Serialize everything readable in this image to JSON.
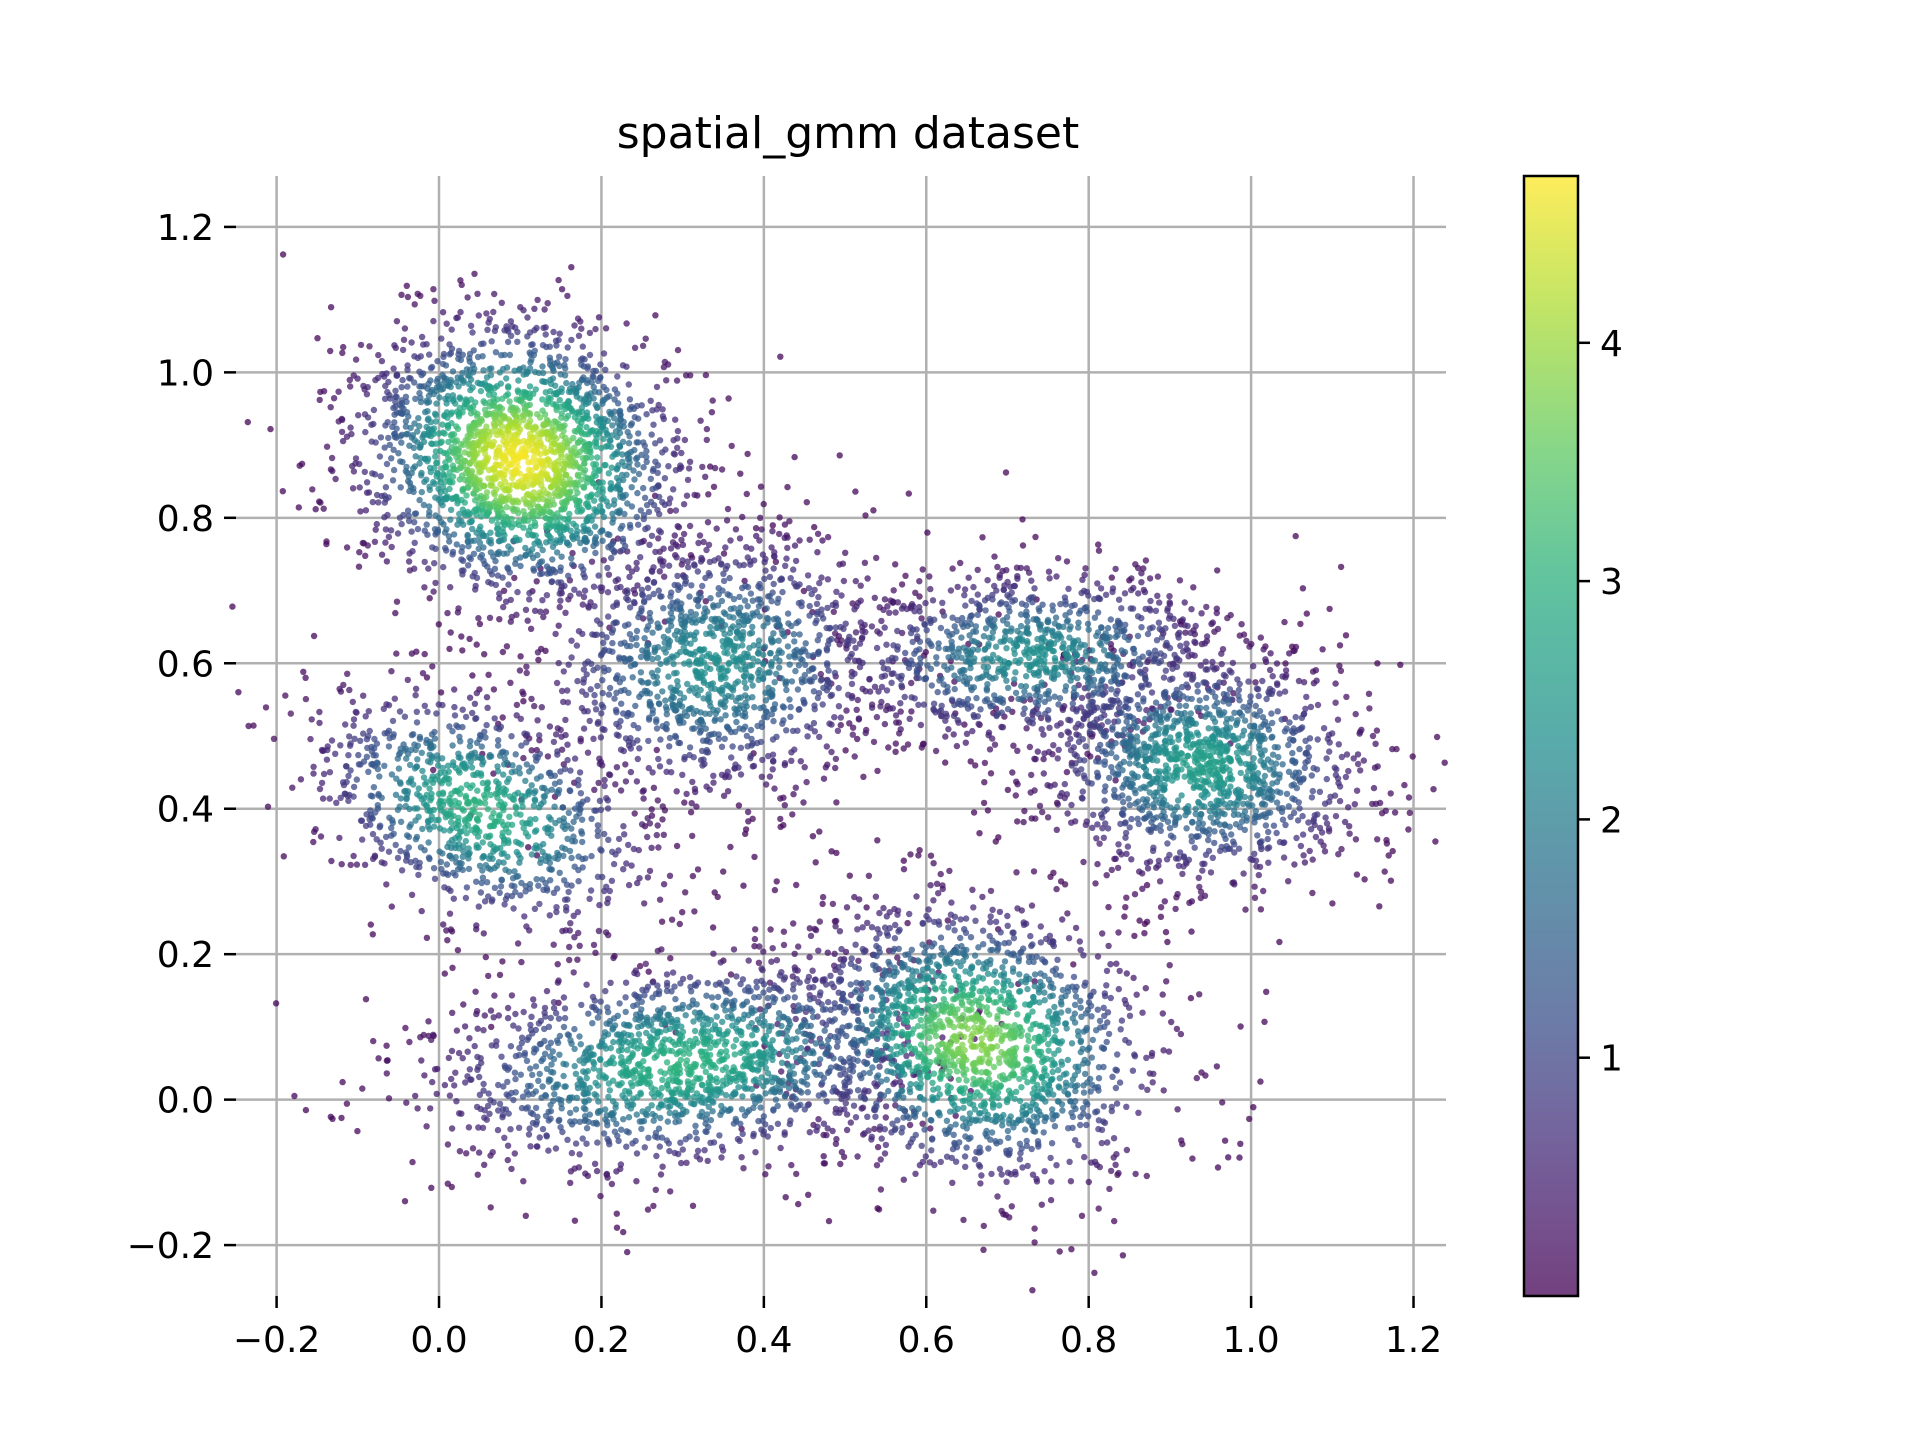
{
  "chart_data": {
    "type": "scatter",
    "title": "spatial_gmm dataset",
    "xlabel": "",
    "ylabel": "",
    "xlim": [
      -0.25,
      1.24
    ],
    "ylim": [
      -0.27,
      1.27
    ],
    "x_ticks": [
      "−0.2",
      "0.0",
      "0.2",
      "0.4",
      "0.6",
      "0.8",
      "1.0",
      "1.2"
    ],
    "x_tick_values": [
      -0.2,
      0.0,
      0.2,
      0.4,
      0.6,
      0.8,
      1.0,
      1.2
    ],
    "y_ticks": [
      "−0.2",
      "0.0",
      "0.2",
      "0.4",
      "0.6",
      "0.8",
      "1.0",
      "1.2"
    ],
    "y_tick_values": [
      -0.2,
      0.0,
      0.2,
      0.4,
      0.6,
      0.8,
      1.0,
      1.2
    ],
    "grid": true,
    "colormap": "viridis",
    "colorbar": {
      "range": [
        0.0,
        4.7
      ],
      "ticks": [
        "1",
        "2",
        "3",
        "4"
      ],
      "tick_values": [
        1,
        2,
        3,
        4
      ]
    },
    "point_alpha": 0.75,
    "clusters": [
      {
        "center": [
          0.1,
          0.88
        ],
        "sx": 0.1,
        "sy": 0.09,
        "angle_deg": -38,
        "count": 2200,
        "peak": 4.6
      },
      {
        "center": [
          0.34,
          0.6
        ],
        "sx": 0.11,
        "sy": 0.09,
        "angle_deg": 10,
        "count": 1300,
        "peak": 2.3
      },
      {
        "center": [
          0.05,
          0.4
        ],
        "sx": 0.07,
        "sy": 0.11,
        "angle_deg": 60,
        "count": 1000,
        "peak": 3.0
      },
      {
        "center": [
          0.3,
          0.05
        ],
        "sx": 0.15,
        "sy": 0.07,
        "angle_deg": 8,
        "count": 1600,
        "peak": 3.0
      },
      {
        "center": [
          0.66,
          0.08
        ],
        "sx": 0.11,
        "sy": 0.09,
        "angle_deg": -25,
        "count": 1700,
        "peak": 3.8
      },
      {
        "center": [
          0.73,
          0.61
        ],
        "sx": 0.12,
        "sy": 0.06,
        "angle_deg": 3,
        "count": 1000,
        "peak": 2.3
      },
      {
        "center": [
          0.94,
          0.46
        ],
        "sx": 0.1,
        "sy": 0.08,
        "angle_deg": -10,
        "count": 1400,
        "peak": 2.6
      }
    ]
  }
}
